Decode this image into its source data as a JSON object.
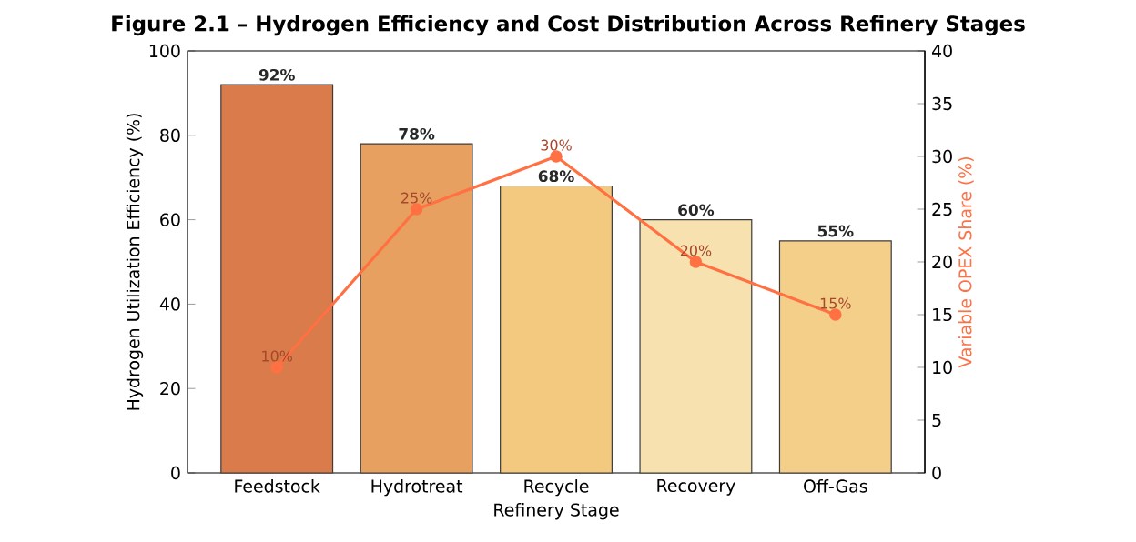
{
  "chart_data": {
    "type": "bar",
    "title": "Figure 2.1 – Hydrogen Efficiency and Cost Distribution Across Refinery Stages",
    "xlabel": "Refinery Stage",
    "ylabel": "Hydrogen Utilization Efficiency (%)",
    "y2label": "Variable OPEX Share (%)",
    "categories": [
      "Feedstock",
      "Hydrotreat",
      "Recycle",
      "Recovery",
      "Off-Gas"
    ],
    "ylim": [
      0,
      100
    ],
    "yticks": [
      0,
      20,
      40,
      60,
      80,
      100
    ],
    "y2lim": [
      0,
      40
    ],
    "y2ticks": [
      0,
      5,
      10,
      15,
      20,
      25,
      30,
      35,
      40
    ],
    "series": [
      {
        "colors": [
          "#d97b4a",
          "#e8a060",
          "#f2c97e",
          "#f7e1ae",
          "#f4cf8a"
        ],
        "values": [
          92,
          78,
          68,
          60,
          55
        ],
        "value_labels": [
          "92%",
          "78%",
          "68%",
          "60%",
          "55%"
        ]
      },
      {
        "type": "line",
        "axis": "y2",
        "color": "#ff7043",
        "marker": "circle",
        "line_style": "solid",
        "values": [
          10,
          25,
          30,
          20,
          15
        ],
        "value_labels": [
          "10%",
          "25%",
          "30%",
          "20%",
          "15%"
        ]
      }
    ]
  }
}
